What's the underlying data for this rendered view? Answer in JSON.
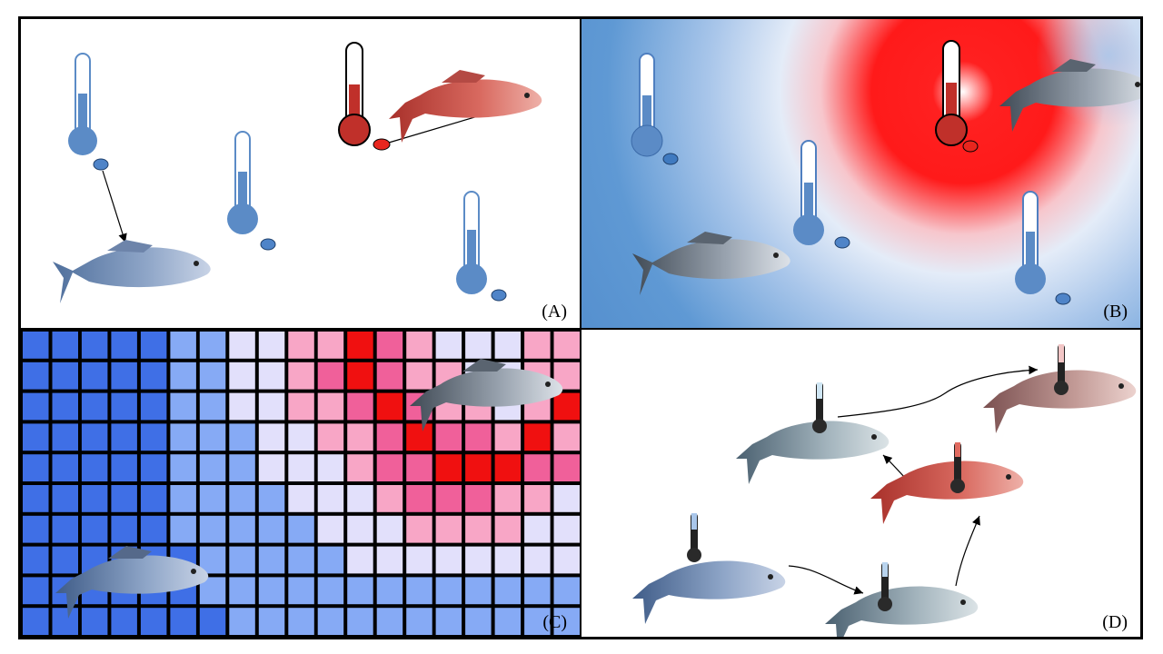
{
  "panels": {
    "a": {
      "label": "(A)"
    },
    "b": {
      "label": "(B)"
    },
    "c": {
      "label": "(C)"
    },
    "d": {
      "label": "(D)"
    }
  },
  "colors": {
    "cold_blue": "#4f7fc0",
    "warm_red": "#e8261e",
    "thermometer_blue": "#5b8bc6",
    "thermometer_red": "#c0302a",
    "grid_dark_blue": "#3f6fe6",
    "grid_mid_blue": "#86aaf5",
    "grid_pale": "#e2e0fb",
    "grid_pink": "#f8a6c6",
    "grid_rose": "#f0609a",
    "grid_red": "#f01010"
  },
  "grid_c": {
    "rows": [
      [
        0,
        0,
        0,
        0,
        0,
        1,
        1,
        2,
        2,
        3,
        3,
        5,
        4,
        3,
        2,
        2,
        2,
        3,
        3
      ],
      [
        0,
        0,
        0,
        0,
        0,
        1,
        1,
        2,
        2,
        3,
        4,
        5,
        4,
        3,
        3,
        2,
        2,
        3,
        3
      ],
      [
        0,
        0,
        0,
        0,
        0,
        1,
        1,
        2,
        2,
        3,
        3,
        4,
        5,
        4,
        3,
        3,
        2,
        3,
        5
      ],
      [
        0,
        0,
        0,
        0,
        0,
        1,
        1,
        1,
        2,
        2,
        3,
        3,
        4,
        5,
        4,
        4,
        3,
        5,
        3
      ],
      [
        0,
        0,
        0,
        0,
        0,
        1,
        1,
        1,
        2,
        2,
        2,
        3,
        4,
        4,
        5,
        5,
        5,
        4,
        4
      ],
      [
        0,
        0,
        0,
        0,
        0,
        1,
        1,
        1,
        1,
        2,
        2,
        2,
        3,
        4,
        4,
        4,
        3,
        3,
        2
      ],
      [
        0,
        0,
        0,
        0,
        0,
        1,
        1,
        1,
        1,
        1,
        2,
        2,
        2,
        3,
        3,
        3,
        3,
        2,
        2
      ],
      [
        0,
        0,
        0,
        0,
        0,
        0,
        1,
        1,
        1,
        1,
        1,
        2,
        2,
        2,
        2,
        2,
        2,
        2,
        2
      ],
      [
        0,
        0,
        0,
        0,
        0,
        0,
        1,
        1,
        1,
        1,
        1,
        1,
        1,
        1,
        1,
        1,
        1,
        1,
        1
      ],
      [
        0,
        0,
        0,
        0,
        0,
        0,
        0,
        1,
        1,
        1,
        1,
        1,
        1,
        1,
        1,
        1,
        1,
        1,
        1
      ]
    ]
  }
}
